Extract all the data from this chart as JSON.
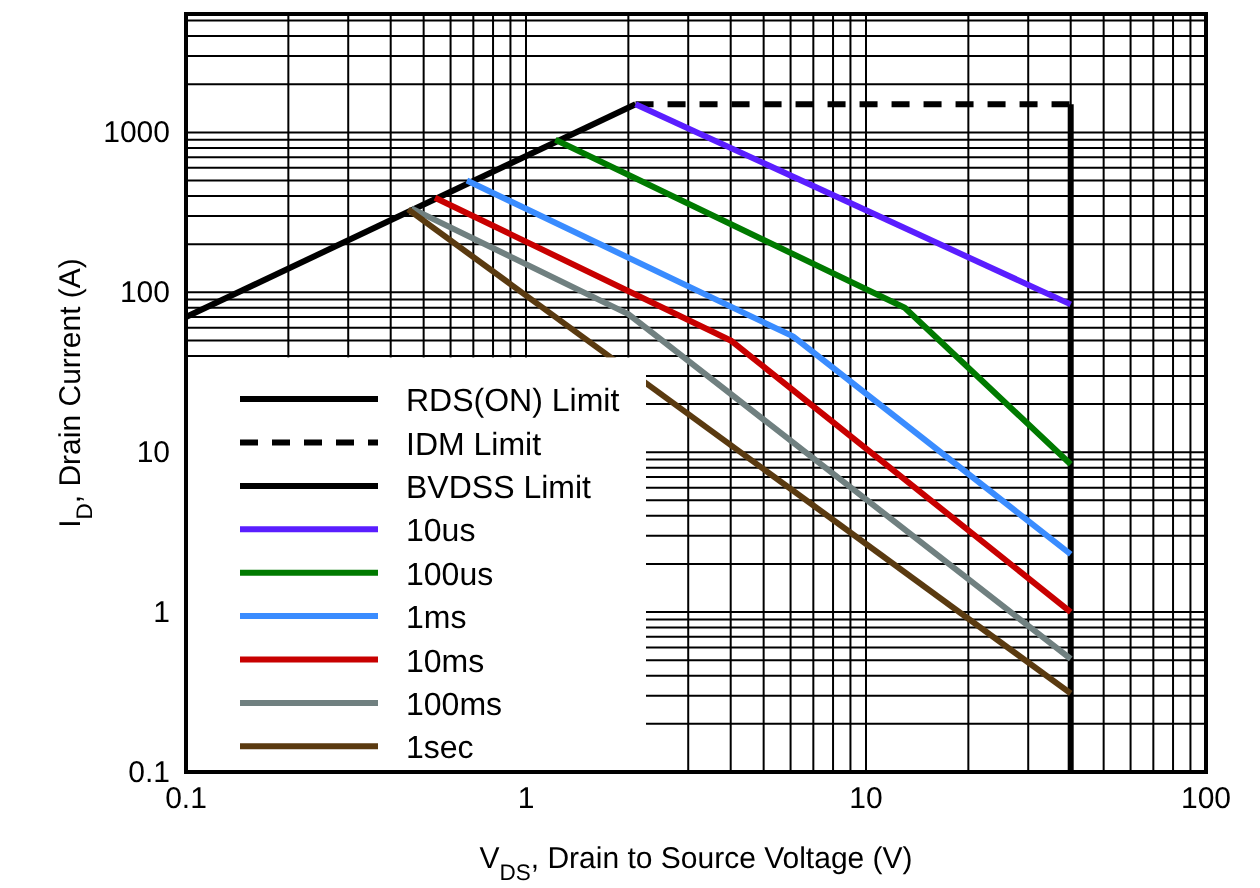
{
  "chart_data": {
    "type": "line",
    "xlabel": "V$_{DS}$, Drain to Source Voltage (V)",
    "ylabel": "I$_{D}$, Drain Current (A)",
    "log": "xy",
    "grid": true,
    "legend": "bottom left",
    "xlim": [
      0.1,
      100
    ],
    "ylim": [
      0.1,
      5500
    ],
    "xticks": [
      0.1,
      {
        "value": 0.2,
        "label": null
      },
      {
        "value": 0.3,
        "label": null
      },
      {
        "value": 0.4,
        "label": null
      },
      {
        "value": 0.5,
        "label": null
      },
      {
        "value": 0.6,
        "label": null
      },
      {
        "value": 0.7,
        "label": null
      },
      {
        "value": 0.8,
        "label": null
      },
      {
        "value": 0.9,
        "label": null
      },
      1,
      {
        "value": 2,
        "label": null
      },
      {
        "value": 3,
        "label": null
      },
      {
        "value": 4,
        "label": null
      },
      {
        "value": 5,
        "label": null
      },
      {
        "value": 6,
        "label": null
      },
      {
        "value": 7,
        "label": null
      },
      {
        "value": 8,
        "label": null
      },
      {
        "value": 9,
        "label": null
      },
      10,
      {
        "value": 20,
        "label": null
      },
      {
        "value": 30,
        "label": null
      },
      {
        "value": 40,
        "label": null
      },
      {
        "value": 50,
        "label": null
      },
      {
        "value": 60,
        "label": null
      },
      {
        "value": 70,
        "label": null
      },
      {
        "value": 80,
        "label": null
      },
      {
        "value": 90,
        "label": null
      },
      100
    ],
    "yticks": [
      0.1,
      {
        "value": 0.2,
        "label": null
      },
      {
        "value": 0.3,
        "label": null
      },
      {
        "value": 0.4,
        "label": null
      },
      {
        "value": 0.5,
        "label": null
      },
      {
        "value": 0.6,
        "label": null
      },
      {
        "value": 0.7,
        "label": null
      },
      {
        "value": 0.8,
        "label": null
      },
      {
        "value": 0.9,
        "label": null
      },
      1,
      {
        "value": 2,
        "label": null
      },
      {
        "value": 3,
        "label": null
      },
      {
        "value": 4,
        "label": null
      },
      {
        "value": 5,
        "label": null
      },
      {
        "value": 6,
        "label": null
      },
      {
        "value": 7,
        "label": null
      },
      {
        "value": 8,
        "label": null
      },
      {
        "value": 9,
        "label": null
      },
      10,
      {
        "value": 20,
        "label": null
      },
      {
        "value": 30,
        "label": null
      },
      {
        "value": 40,
        "label": null
      },
      {
        "value": 50,
        "label": null
      },
      {
        "value": 60,
        "label": null
      },
      {
        "value": 70,
        "label": null
      },
      {
        "value": 80,
        "label": null
      },
      {
        "value": 90,
        "label": null
      },
      100,
      {
        "value": 200,
        "label": null
      },
      {
        "value": 300,
        "label": null
      },
      {
        "value": 400,
        "label": null
      },
      {
        "value": 500,
        "label": null
      },
      {
        "value": 600,
        "label": null
      },
      {
        "value": 700,
        "label": null
      },
      {
        "value": 800,
        "label": null
      },
      {
        "value": 900,
        "label": null
      },
      1000,
      {
        "value": 2000,
        "label": null
      },
      {
        "value": 3000,
        "label": null
      },
      {
        "value": 4000,
        "label": null
      },
      {
        "value": 5000,
        "label": null
      }
    ],
    "series": [
      {
        "name": "RDS(ON) Limit",
        "color": "#000000",
        "line_style": "solid",
        "x": [
          0.1,
          2.1
        ],
        "values": [
          70,
          1500
        ]
      },
      {
        "name": "IDM Limit",
        "color": "#000000",
        "line_style": "dashed",
        "x": [
          2.1,
          40
        ],
        "values": [
          1500,
          1500
        ]
      },
      {
        "name": "BVDSS Limit",
        "color": "#000000",
        "line_style": "solid",
        "x": [
          40,
          40
        ],
        "values": [
          1500,
          0.1
        ]
      },
      {
        "name": "10us",
        "color": "#5a1eff",
        "line_style": "solid",
        "x": [
          2.1,
          40
        ],
        "values": [
          1500,
          84
        ]
      },
      {
        "name": "100us",
        "color": "#007a00",
        "line_style": "solid",
        "x": [
          1.22,
          13,
          40
        ],
        "values": [
          900,
          80,
          8.4
        ]
      },
      {
        "name": "1ms",
        "color": "#3a8cff",
        "line_style": "solid",
        "x": [
          0.67,
          6.1,
          40
        ],
        "values": [
          500,
          53,
          2.3
        ]
      },
      {
        "name": "10ms",
        "color": "#c80000",
        "line_style": "solid",
        "x": [
          0.54,
          4,
          40
        ],
        "values": [
          390,
          50,
          1
        ]
      },
      {
        "name": "100ms",
        "color": "#708080",
        "line_style": "solid",
        "x": [
          0.46,
          2,
          40
        ],
        "values": [
          335,
          73,
          0.51
        ]
      },
      {
        "name": "1sec",
        "color": "#5a3a10",
        "line_style": "solid",
        "x": [
          0.45,
          40
        ],
        "values": [
          330,
          0.31
        ]
      }
    ]
  }
}
